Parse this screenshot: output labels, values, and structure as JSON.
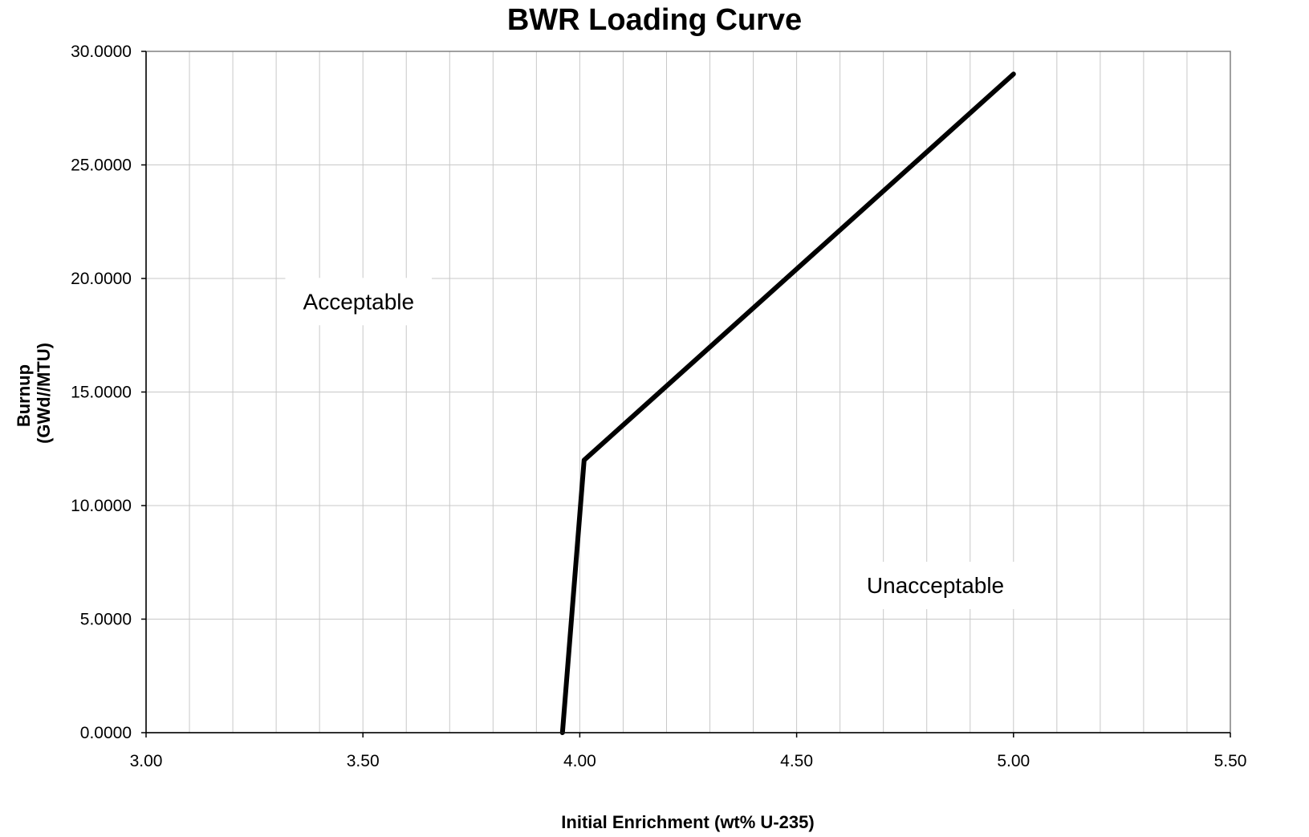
{
  "chart_data": {
    "type": "line",
    "title": "BWR Loading Curve",
    "xlabel": "Initial Enrichment (wt% U-235)",
    "ylabel": [
      "Burnup",
      "(GWd//MTU)"
    ],
    "xlim": [
      3.0,
      5.5
    ],
    "ylim": [
      0,
      30
    ],
    "x_major_ticks": [
      "3.00",
      "3.50",
      "4.00",
      "4.50",
      "5.00",
      "5.50"
    ],
    "x_minor_step": 0.1,
    "y_ticks": [
      "0.0000",
      "5.0000",
      "10.0000",
      "15.0000",
      "20.0000",
      "25.0000",
      "30.0000"
    ],
    "grid": true,
    "series": [
      {
        "x": [
          3.96,
          4.01,
          5.0
        ],
        "y": [
          0.0,
          12.0,
          29.0
        ],
        "color": "#000000"
      }
    ],
    "annotations": [
      {
        "text": "Acceptable",
        "x": 3.49,
        "y": 19.0
      },
      {
        "text": "Unacceptable",
        "x": 4.82,
        "y": 6.5
      }
    ]
  }
}
